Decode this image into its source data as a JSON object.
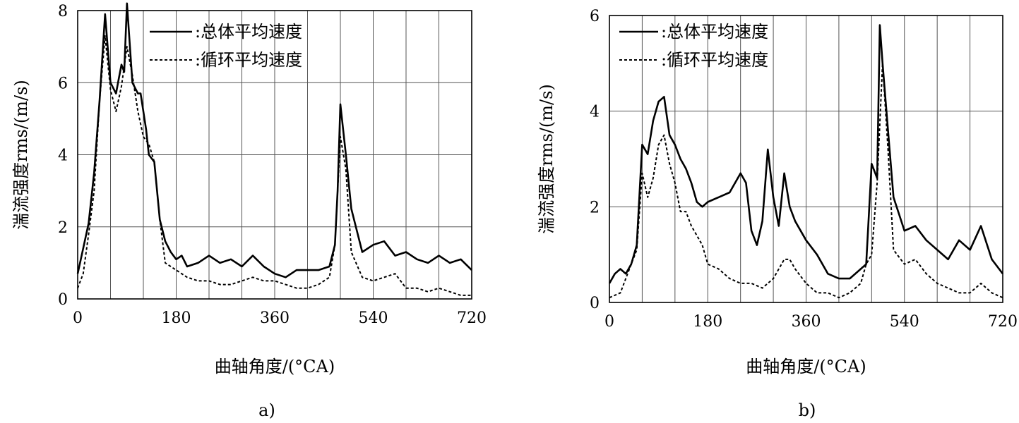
{
  "chart_data": [
    {
      "type": "line",
      "label": "a)",
      "xlabel": "曲轴角度/(°CA)",
      "ylabel": "湍流强度rms/(m/s)",
      "xlim": [
        0,
        720
      ],
      "ylim": [
        0,
        8
      ],
      "xticks": [
        0,
        180,
        360,
        540,
        720
      ],
      "xtick_labels": [
        "0",
        "180",
        "360",
        "540",
        "720"
      ],
      "yticks": [
        0,
        2,
        4,
        6,
        8
      ],
      "ytick_labels": [
        "0",
        "2",
        "4",
        "6",
        "8"
      ],
      "grid": true,
      "legend": "top-right",
      "series": [
        {
          "name": ":总体平均速度",
          "style": "solid",
          "x": [
            0,
            10,
            20,
            30,
            40,
            50,
            60,
            70,
            75,
            80,
            85,
            90,
            100,
            110,
            115,
            120,
            125,
            130,
            140,
            150,
            160,
            170,
            180,
            190,
            200,
            220,
            240,
            260,
            280,
            300,
            320,
            340,
            360,
            380,
            400,
            420,
            440,
            460,
            470,
            475,
            480,
            490,
            500,
            520,
            540,
            560,
            580,
            600,
            620,
            640,
            660,
            680,
            700,
            720
          ],
          "y": [
            0.7,
            1.4,
            2.1,
            3.5,
            5.5,
            7.9,
            6.0,
            5.7,
            6.1,
            6.5,
            6.3,
            8.2,
            6.0,
            5.7,
            5.7,
            5.2,
            4.7,
            4.0,
            3.8,
            2.2,
            1.6,
            1.3,
            1.1,
            1.2,
            0.9,
            1.0,
            1.2,
            1.0,
            1.1,
            0.9,
            1.2,
            0.9,
            0.7,
            0.6,
            0.8,
            0.8,
            0.8,
            0.9,
            1.5,
            3.0,
            5.4,
            4.0,
            2.5,
            1.3,
            1.5,
            1.6,
            1.2,
            1.3,
            1.1,
            1.0,
            1.2,
            1.0,
            1.1,
            0.8
          ]
        },
        {
          "name": ":循环平均速度",
          "style": "dashed",
          "x": [
            0,
            10,
            20,
            30,
            40,
            50,
            60,
            70,
            80,
            90,
            100,
            110,
            120,
            130,
            140,
            150,
            160,
            180,
            200,
            220,
            240,
            260,
            280,
            300,
            320,
            340,
            360,
            380,
            400,
            420,
            440,
            460,
            470,
            480,
            490,
            500,
            520,
            540,
            560,
            580,
            600,
            620,
            640,
            660,
            680,
            700,
            720
          ],
          "y": [
            0.3,
            0.7,
            1.8,
            3.0,
            5.5,
            7.3,
            5.8,
            5.2,
            5.9,
            7.0,
            6.2,
            5.2,
            4.5,
            4.3,
            3.8,
            2.2,
            1.0,
            0.8,
            0.6,
            0.5,
            0.5,
            0.4,
            0.4,
            0.5,
            0.6,
            0.5,
            0.5,
            0.4,
            0.3,
            0.3,
            0.4,
            0.6,
            1.5,
            4.5,
            3.6,
            1.3,
            0.6,
            0.5,
            0.6,
            0.7,
            0.3,
            0.3,
            0.2,
            0.3,
            0.2,
            0.1,
            0.1
          ]
        }
      ]
    },
    {
      "type": "line",
      "label": "b)",
      "xlabel": "曲轴角度/(°CA)",
      "ylabel": "湍流强度rms/(m/s)",
      "xlim": [
        0,
        720
      ],
      "ylim": [
        0,
        6
      ],
      "xticks": [
        0,
        180,
        360,
        540,
        720
      ],
      "xtick_labels": [
        "0",
        "180",
        "360",
        "540",
        "720"
      ],
      "yticks": [
        0,
        2,
        4,
        6
      ],
      "ytick_labels": [
        "0",
        "2",
        "4",
        "6"
      ],
      "grid": true,
      "legend": "top-left",
      "series": [
        {
          "name": ":总体平均速度",
          "style": "solid",
          "x": [
            0,
            10,
            20,
            30,
            40,
            50,
            60,
            70,
            80,
            90,
            100,
            110,
            120,
            130,
            140,
            150,
            160,
            170,
            180,
            200,
            220,
            240,
            250,
            260,
            270,
            280,
            290,
            300,
            310,
            320,
            330,
            340,
            360,
            380,
            400,
            420,
            440,
            460,
            470,
            480,
            490,
            495,
            500,
            510,
            520,
            540,
            560,
            580,
            600,
            620,
            640,
            660,
            680,
            700,
            720
          ],
          "y": [
            0.4,
            0.6,
            0.7,
            0.6,
            0.8,
            1.2,
            3.3,
            3.1,
            3.8,
            4.2,
            4.3,
            3.5,
            3.3,
            3.0,
            2.8,
            2.5,
            2.1,
            2.0,
            2.1,
            2.2,
            2.3,
            2.7,
            2.5,
            1.5,
            1.2,
            1.7,
            3.2,
            2.2,
            1.6,
            2.7,
            2.0,
            1.7,
            1.3,
            1.0,
            0.6,
            0.5,
            0.5,
            0.7,
            0.8,
            2.9,
            2.6,
            5.8,
            5.0,
            3.6,
            2.2,
            1.5,
            1.6,
            1.3,
            1.1,
            0.9,
            1.3,
            1.1,
            1.6,
            0.9,
            0.6
          ]
        },
        {
          "name": ":循环平均速度",
          "style": "dashed",
          "x": [
            0,
            20,
            40,
            50,
            60,
            70,
            80,
            90,
            100,
            110,
            120,
            130,
            140,
            150,
            160,
            170,
            180,
            200,
            220,
            240,
            260,
            280,
            300,
            320,
            330,
            340,
            360,
            380,
            400,
            420,
            440,
            460,
            470,
            480,
            490,
            500,
            510,
            520,
            540,
            560,
            580,
            600,
            620,
            640,
            660,
            680,
            700,
            720
          ],
          "y": [
            0.1,
            0.2,
            0.8,
            1.1,
            2.7,
            2.2,
            2.6,
            3.3,
            3.5,
            2.9,
            2.5,
            1.9,
            1.9,
            1.6,
            1.4,
            1.2,
            0.8,
            0.7,
            0.5,
            0.4,
            0.4,
            0.3,
            0.5,
            0.9,
            0.9,
            0.7,
            0.4,
            0.2,
            0.2,
            0.1,
            0.2,
            0.4,
            0.8,
            1.0,
            2.5,
            5.0,
            3.2,
            1.1,
            0.8,
            0.9,
            0.6,
            0.4,
            0.3,
            0.2,
            0.2,
            0.4,
            0.2,
            0.1
          ]
        }
      ]
    }
  ]
}
